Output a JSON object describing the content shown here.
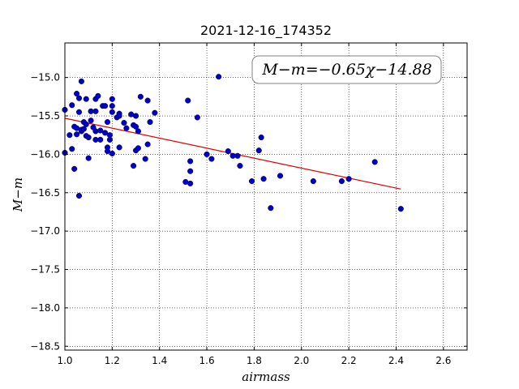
{
  "chart_data": {
    "type": "scatter",
    "title": "2021-12-16_174352",
    "xlabel": "airmass",
    "ylabel": "M−m",
    "xlim": [
      1.0,
      2.7
    ],
    "ylim": [
      -18.55,
      -14.55
    ],
    "grid": true,
    "x_ticks": [
      1.0,
      1.2,
      1.4,
      1.6,
      1.8,
      2.0,
      2.2,
      2.4,
      2.6
    ],
    "x_tick_labels": [
      "1.0",
      "1.2",
      "1.4",
      "1.6",
      "1.8",
      "2.0",
      "2.2",
      "2.4",
      "2.6"
    ],
    "y_ticks": [
      -15.0,
      -15.5,
      -16.0,
      -16.5,
      -17.0,
      -17.5,
      -18.0,
      -18.5
    ],
    "y_tick_labels": [
      "−15.0",
      "−15.5",
      "−16.0",
      "−16.5",
      "−17.0",
      "−17.5",
      "−18.0",
      "−18.5"
    ],
    "annotation": "M−m=−0.65χ−14.88",
    "fit": {
      "slope": -0.65,
      "intercept": -14.88,
      "x_range": [
        1.0,
        2.42
      ],
      "color": "#dd0000"
    },
    "series": [
      {
        "color": "#0000cc",
        "points": [
          [
            1.0,
            -15.42
          ],
          [
            1.0,
            -15.98
          ],
          [
            1.02,
            -15.75
          ],
          [
            1.03,
            -15.36
          ],
          [
            1.03,
            -15.93
          ],
          [
            1.04,
            -15.64
          ],
          [
            1.04,
            -16.19
          ],
          [
            1.05,
            -15.21
          ],
          [
            1.05,
            -15.66
          ],
          [
            1.05,
            -15.74
          ],
          [
            1.06,
            -15.27
          ],
          [
            1.06,
            -15.45
          ],
          [
            1.06,
            -16.54
          ],
          [
            1.07,
            -15.05
          ],
          [
            1.07,
            -15.7
          ],
          [
            1.07,
            -15.68
          ],
          [
            1.08,
            -15.67
          ],
          [
            1.08,
            -15.58
          ],
          [
            1.09,
            -15.28
          ],
          [
            1.09,
            -15.61
          ],
          [
            1.09,
            -15.76
          ],
          [
            1.1,
            -15.78
          ],
          [
            1.1,
            -16.05
          ],
          [
            1.11,
            -15.56
          ],
          [
            1.11,
            -15.44
          ],
          [
            1.12,
            -15.65
          ],
          [
            1.13,
            -15.28
          ],
          [
            1.13,
            -15.44
          ],
          [
            1.13,
            -15.7
          ],
          [
            1.13,
            -15.81
          ],
          [
            1.14,
            -15.24
          ],
          [
            1.15,
            -15.69
          ],
          [
            1.15,
            -15.81
          ],
          [
            1.16,
            -15.37
          ],
          [
            1.17,
            -15.37
          ],
          [
            1.17,
            -15.72
          ],
          [
            1.18,
            -15.58
          ],
          [
            1.18,
            -15.91
          ],
          [
            1.18,
            -15.96
          ],
          [
            1.19,
            -15.75
          ],
          [
            1.19,
            -15.81
          ],
          [
            1.2,
            -15.28
          ],
          [
            1.2,
            -15.45
          ],
          [
            1.2,
            -15.37
          ],
          [
            1.2,
            -15.99
          ],
          [
            1.22,
            -15.52
          ],
          [
            1.23,
            -15.5
          ],
          [
            1.23,
            -15.47
          ],
          [
            1.23,
            -15.91
          ],
          [
            1.25,
            -15.59
          ],
          [
            1.26,
            -15.66
          ],
          [
            1.28,
            -15.48
          ],
          [
            1.29,
            -16.15
          ],
          [
            1.29,
            -15.62
          ],
          [
            1.3,
            -15.5
          ],
          [
            1.3,
            -15.64
          ],
          [
            1.3,
            -15.95
          ],
          [
            1.31,
            -15.7
          ],
          [
            1.31,
            -15.92
          ],
          [
            1.32,
            -15.25
          ],
          [
            1.34,
            -16.06
          ],
          [
            1.35,
            -15.3
          ],
          [
            1.35,
            -15.87
          ],
          [
            1.36,
            -15.58
          ],
          [
            1.38,
            -15.46
          ],
          [
            1.51,
            -16.36
          ],
          [
            1.52,
            -15.3
          ],
          [
            1.53,
            -16.09
          ],
          [
            1.53,
            -16.22
          ],
          [
            1.53,
            -16.38
          ],
          [
            1.56,
            -15.52
          ],
          [
            1.6,
            -16.0
          ],
          [
            1.62,
            -16.06
          ],
          [
            1.65,
            -14.99
          ],
          [
            1.69,
            -15.96
          ],
          [
            1.71,
            -16.02
          ],
          [
            1.73,
            -16.02
          ],
          [
            1.74,
            -16.15
          ],
          [
            1.79,
            -16.35
          ],
          [
            1.82,
            -15.95
          ],
          [
            1.83,
            -15.78
          ],
          [
            1.84,
            -16.32
          ],
          [
            1.87,
            -16.7
          ],
          [
            1.91,
            -16.28
          ],
          [
            2.05,
            -16.35
          ],
          [
            2.17,
            -16.35
          ],
          [
            2.2,
            -16.32
          ],
          [
            2.31,
            -16.1
          ],
          [
            2.42,
            -16.71
          ]
        ]
      }
    ]
  }
}
